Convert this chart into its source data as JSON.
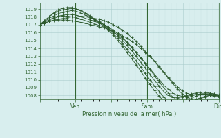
{
  "title": "",
  "xlabel": "Pression niveau de la mer( hPa )",
  "ylabel": "",
  "bg_color": "#d8eeee",
  "grid_major_color": "#aacccc",
  "grid_minor_color": "#c8e0e0",
  "line_color": "#2d5a2d",
  "marker_color": "#2d5a2d",
  "vline_color": "#336633",
  "yticks": [
    1008,
    1009,
    1010,
    1011,
    1012,
    1013,
    1014,
    1015,
    1016,
    1017,
    1018,
    1019
  ],
  "ylim": [
    1007.5,
    1019.8
  ],
  "xtick_labels": [
    "",
    "Ven",
    "",
    "Sam",
    "",
    "Dim"
  ],
  "xtick_positions": [
    0,
    24,
    48,
    72,
    96,
    120
  ],
  "vline_positions": [
    24,
    72,
    120
  ],
  "total_hours": 120,
  "series": [
    [
      1017.0,
      1017.2,
      1017.4,
      1017.6,
      1017.7,
      1017.8,
      1017.9,
      1018.0,
      1018.0,
      1018.1,
      1018.0,
      1017.9,
      1017.8,
      1017.7,
      1017.5,
      1017.3,
      1017.0,
      1016.7,
      1016.3,
      1015.9,
      1015.4,
      1014.9,
      1014.3,
      1013.6,
      1013.0,
      1012.3,
      1011.6,
      1010.9,
      1010.2,
      1009.5,
      1008.8,
      1008.2,
      1007.8,
      1007.5,
      1007.5,
      1007.6,
      1007.8,
      1008.0,
      1008.0,
      1008.0
    ],
    [
      1017.0,
      1017.3,
      1017.6,
      1017.9,
      1018.1,
      1018.2,
      1018.3,
      1018.3,
      1018.2,
      1018.0,
      1017.8,
      1017.6,
      1017.4,
      1017.2,
      1017.0,
      1016.7,
      1016.3,
      1015.9,
      1015.4,
      1014.8,
      1014.2,
      1013.5,
      1012.8,
      1012.1,
      1011.4,
      1010.7,
      1010.0,
      1009.3,
      1008.8,
      1008.3,
      1008.0,
      1007.9,
      1007.9,
      1008.0,
      1008.1,
      1008.2,
      1008.2,
      1008.2,
      1008.1,
      1008.0
    ],
    [
      1017.0,
      1017.4,
      1017.8,
      1018.1,
      1018.4,
      1018.6,
      1018.7,
      1018.8,
      1018.7,
      1018.5,
      1018.2,
      1017.9,
      1017.6,
      1017.3,
      1017.0,
      1016.6,
      1016.1,
      1015.6,
      1015.0,
      1014.4,
      1013.7,
      1013.0,
      1012.2,
      1011.5,
      1010.7,
      1009.9,
      1009.2,
      1008.5,
      1008.0,
      1007.8,
      1007.7,
      1007.8,
      1008.0,
      1008.2,
      1008.3,
      1008.4,
      1008.4,
      1008.3,
      1008.2,
      1008.0
    ],
    [
      1017.0,
      1017.5,
      1018.0,
      1018.4,
      1018.7,
      1018.9,
      1019.0,
      1019.1,
      1019.0,
      1018.8,
      1018.5,
      1018.1,
      1017.7,
      1017.4,
      1017.0,
      1016.5,
      1015.9,
      1015.3,
      1014.6,
      1013.9,
      1013.1,
      1012.4,
      1011.6,
      1010.8,
      1010.0,
      1009.2,
      1008.5,
      1007.8,
      1007.3,
      1007.1,
      1007.1,
      1007.3,
      1007.6,
      1007.9,
      1008.1,
      1008.2,
      1008.2,
      1008.1,
      1008.0,
      1007.9
    ],
    [
      1017.0,
      1017.5,
      1018.0,
      1018.5,
      1018.9,
      1019.1,
      1019.2,
      1019.2,
      1019.0,
      1018.7,
      1018.4,
      1018.0,
      1017.6,
      1017.2,
      1016.8,
      1016.3,
      1015.7,
      1015.0,
      1014.3,
      1013.5,
      1012.7,
      1011.9,
      1011.1,
      1010.2,
      1009.4,
      1008.6,
      1007.9,
      1007.3,
      1006.9,
      1006.7,
      1006.7,
      1006.9,
      1007.3,
      1007.6,
      1007.9,
      1008.1,
      1008.1,
      1008.0,
      1007.9,
      1007.8
    ],
    [
      1017.0,
      1017.3,
      1017.6,
      1017.8,
      1018.0,
      1018.1,
      1018.1,
      1018.0,
      1017.9,
      1017.7,
      1017.5,
      1017.3,
      1017.1,
      1016.9,
      1016.7,
      1016.4,
      1016.1,
      1015.7,
      1015.2,
      1014.7,
      1014.1,
      1013.5,
      1012.8,
      1012.1,
      1011.3,
      1010.5,
      1009.7,
      1009.0,
      1008.3,
      1007.8,
      1007.4,
      1007.2,
      1007.2,
      1007.3,
      1007.5,
      1007.7,
      1007.9,
      1008.0,
      1008.0,
      1007.9
    ],
    [
      1017.0,
      1017.2,
      1017.4,
      1017.5,
      1017.6,
      1017.6,
      1017.6,
      1017.5,
      1017.4,
      1017.3,
      1017.2,
      1017.0,
      1016.9,
      1016.7,
      1016.6,
      1016.4,
      1016.2,
      1015.9,
      1015.6,
      1015.3,
      1014.9,
      1014.5,
      1014.0,
      1013.5,
      1013.0,
      1012.4,
      1011.7,
      1011.0,
      1010.3,
      1009.7,
      1009.1,
      1008.6,
      1008.3,
      1008.1,
      1008.1,
      1008.1,
      1008.2,
      1008.2,
      1008.2,
      1008.1
    ]
  ]
}
